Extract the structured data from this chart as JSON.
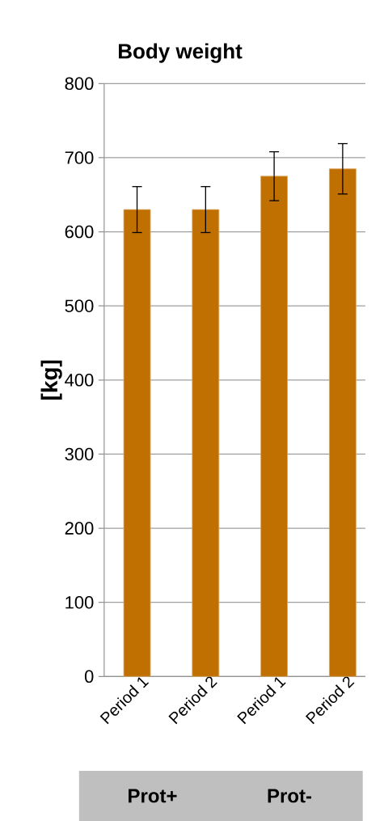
{
  "chart_data": {
    "type": "bar",
    "title": "Body weight",
    "ylabel": "[kg]",
    "categories": [
      "Period 1",
      "Period 2",
      "Period 1",
      "Period 2"
    ],
    "values": [
      630,
      630,
      675,
      685
    ],
    "errors": [
      31,
      31,
      33,
      34
    ],
    "color": "#c07000",
    "ylim": [
      0,
      800
    ],
    "yticks": [
      0,
      100,
      200,
      300,
      400,
      500,
      600,
      700,
      800
    ],
    "grid": "y",
    "annotations": [
      "Prot+",
      "Prot-"
    ]
  }
}
